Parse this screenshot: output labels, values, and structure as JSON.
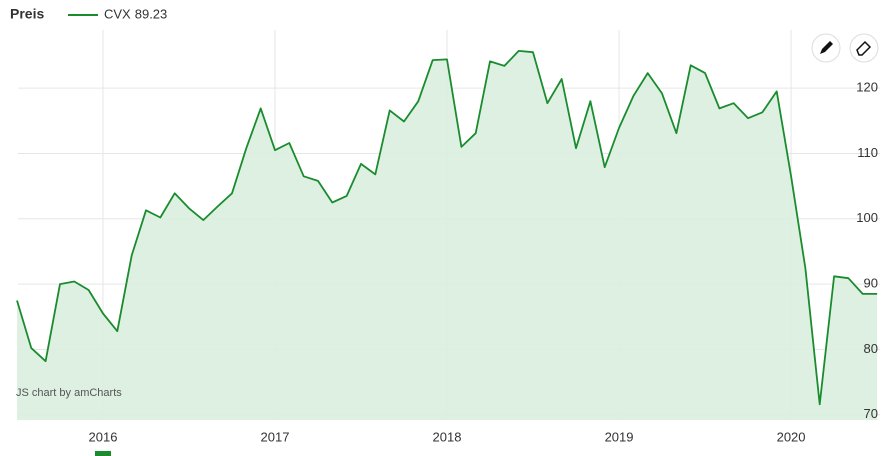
{
  "chart_data": {
    "type": "area",
    "title": "Preis",
    "credit": "JS chart by amCharts",
    "series": [
      {
        "name": "CVX",
        "legend_value": 89.23,
        "color": "#1a8c2e",
        "fill": "#d9eedf",
        "x": [
          2015.5,
          2015.5833,
          2015.6667,
          2015.75,
          2015.8333,
          2015.9167,
          2016.0,
          2016.0833,
          2016.1667,
          2016.25,
          2016.3333,
          2016.4167,
          2016.5,
          2016.5833,
          2016.6667,
          2016.75,
          2016.8333,
          2016.9167,
          2017.0,
          2017.0833,
          2017.1667,
          2017.25,
          2017.3333,
          2017.4167,
          2017.5,
          2017.5833,
          2017.6667,
          2017.75,
          2017.8333,
          2017.9167,
          2018.0,
          2018.0833,
          2018.1667,
          2018.25,
          2018.3333,
          2018.4167,
          2018.5,
          2018.5833,
          2018.6667,
          2018.75,
          2018.8333,
          2018.9167,
          2019.0,
          2019.0833,
          2019.1667,
          2019.25,
          2019.3333,
          2019.4167,
          2019.5,
          2019.5833,
          2019.6667,
          2019.75,
          2019.8333,
          2019.9167,
          2020.0,
          2020.0833,
          2020.1667,
          2020.25,
          2020.3333,
          2020.4167,
          2020.5
        ],
        "values": [
          87.5,
          80.2,
          78.2,
          90.0,
          90.4,
          89.1,
          85.5,
          82.8,
          94.4,
          101.3,
          100.2,
          103.9,
          101.6,
          99.8,
          101.9,
          103.9,
          110.8,
          116.9,
          110.5,
          111.6,
          106.5,
          105.8,
          102.5,
          103.5,
          108.4,
          106.8,
          116.6,
          114.9,
          118.0,
          124.3,
          124.4,
          111.0,
          113.1,
          124.1,
          123.4,
          125.7,
          125.5,
          117.7,
          121.4,
          110.8,
          118.0,
          107.9,
          113.9,
          118.8,
          122.3,
          119.2,
          113.1,
          123.5,
          122.3,
          116.9,
          117.7,
          115.4,
          116.3,
          119.5,
          106.5,
          92.4,
          71.6,
          91.2,
          90.9,
          88.5,
          88.5
        ]
      }
    ],
    "xlim": [
      2015.506,
      2020.517
    ],
    "xticks": [
      2016,
      2017,
      2018,
      2019,
      2020
    ],
    "ylim": [
      69.2,
      128.9
    ],
    "yticks": [
      70,
      80,
      90,
      100,
      110,
      120
    ],
    "grid": true
  }
}
